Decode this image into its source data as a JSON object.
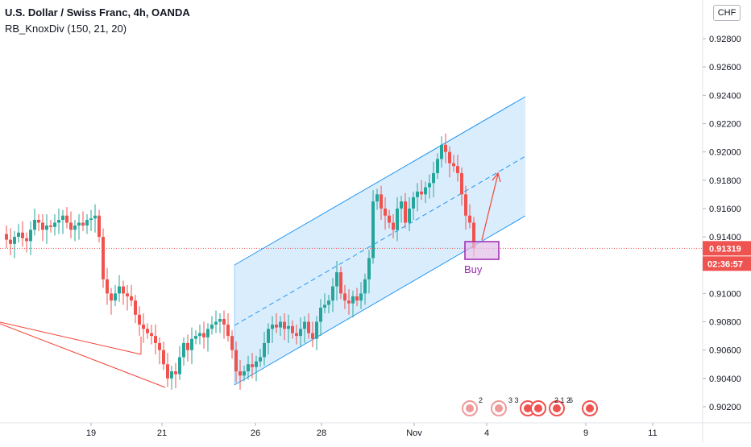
{
  "legend": {
    "title": "U.S. Dollar / Swiss Franc, 4h, OANDA",
    "indicator": "RB_KnoxDiv (150, 21, 20)"
  },
  "currency_button": "CHF",
  "chart_data": {
    "type": "candlestick",
    "price_axis_ticks": [
      "0.92800",
      "0.92600",
      "0.92400",
      "0.92200",
      "0.92000",
      "0.91800",
      "0.91600",
      "0.91400",
      "0.91000",
      "0.90800",
      "0.90600",
      "0.90400",
      "0.90200"
    ],
    "time_axis_ticks": [
      "19",
      "21",
      "26",
      "28",
      "Nov",
      "4",
      "9",
      "11"
    ],
    "ylim": [
      0.901,
      0.93
    ],
    "current_price": "0.91319",
    "countdown": "02:36:57",
    "annotation": "Buy",
    "event_badges": [
      "2",
      "3 3",
      "2 1 2",
      "6"
    ],
    "colors": {
      "up": "#26a69a",
      "down": "#ef5350",
      "channel": "#2196f3",
      "channel_fill": "#bbdefb",
      "price_line": "#ef5350",
      "annotation": "#9c27b0",
      "divergence": "#f44336"
    }
  }
}
